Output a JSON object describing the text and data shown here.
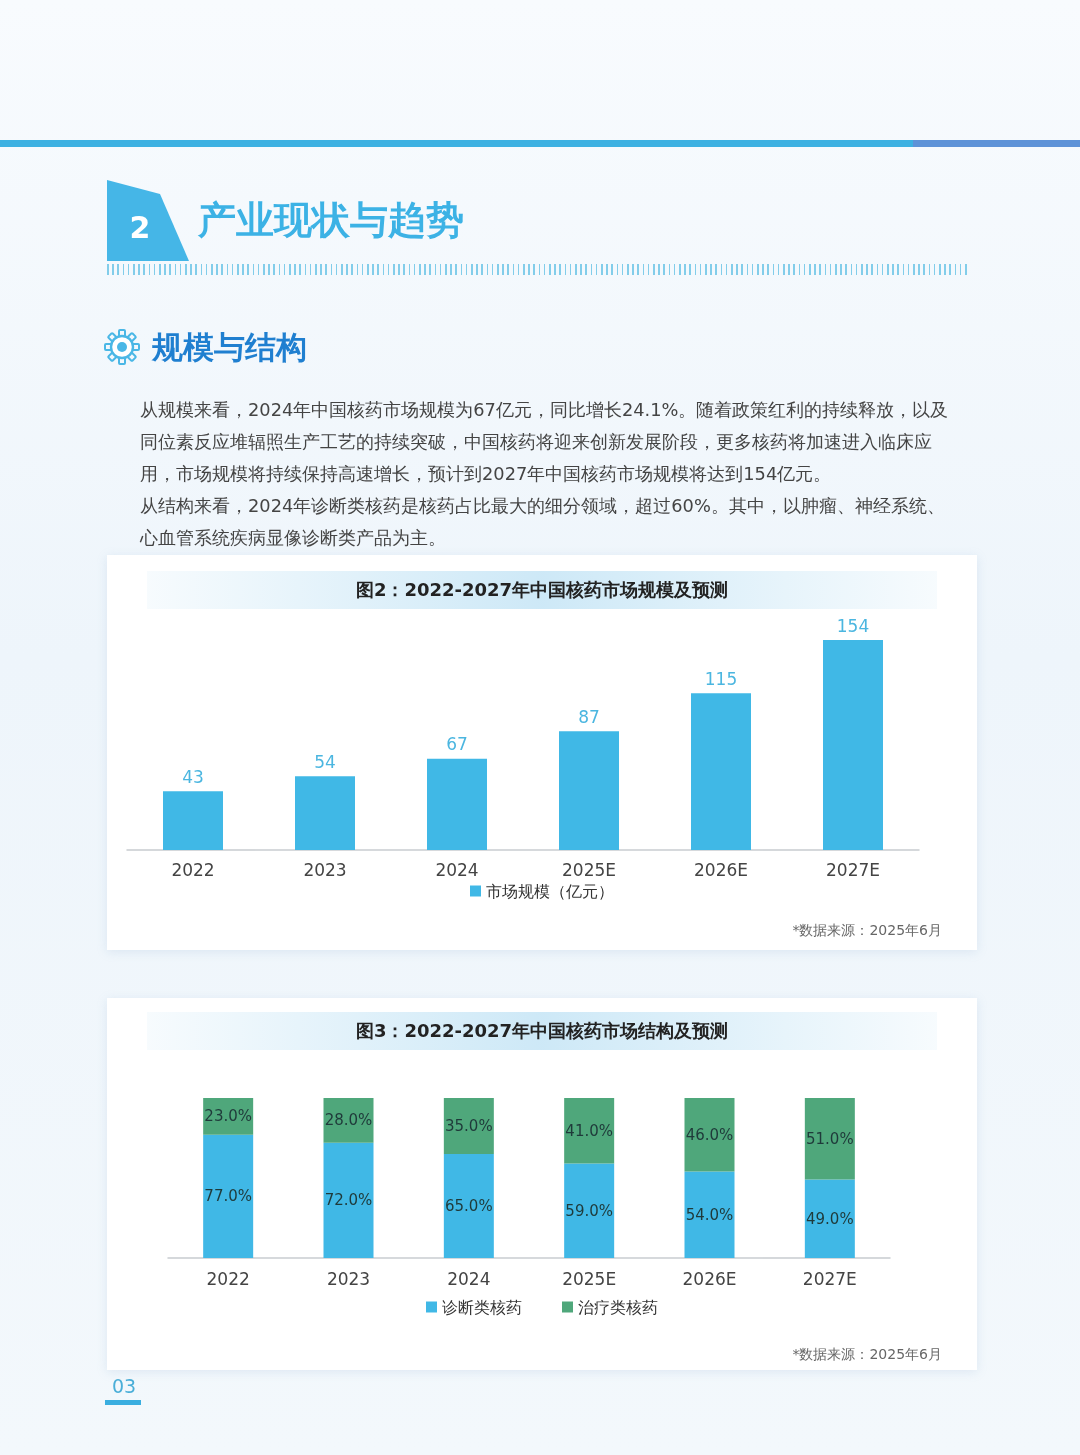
{
  "chart_data": [
    {
      "type": "other",
      "title": "产业现状与趋势",
      "subtitle": "规模与结构",
      "annotations": [
        "2",
        "从规模来看，2024年中国核药市场规模为67亿元，同比增长24.1%。随着政策红利的持续释放，以及同位素反应堆辐照生产工艺的持续突破，中国核药将迎来创新发展阶段，更多核药将加速进入临床应用，市场规模将持续保持高速增长，预计到2027年中国核药市场规模将达到154亿元。",
        "从结构来看，2024年诊断类核药是核药占比最大的细分领域，超过60%。其中，以肿瘤、神经系统、心血管系统疾病显像诊断类产品为主。",
        "03"
      ]
    },
    {
      "type": "bar",
      "title": "图2：2022-2027年中国核药市场规模及预测",
      "categories": [
        "2022",
        "2023",
        "2024",
        "2025E",
        "2026E",
        "2027E"
      ],
      "series": [
        {
          "name": "市场规模（亿元）",
          "color": "#40b8e6",
          "values": [
            43,
            54,
            67,
            87,
            115,
            154
          ]
        }
      ],
      "data_labels": true,
      "legend": "bottom",
      "tick_labels": "x",
      "annotations": [
        "*数据来源：2025年6月"
      ]
    },
    {
      "type": "bar",
      "title": "图3：2022-2027年中国核药市场结构及预测",
      "categories": [
        "2022",
        "2023",
        "2024",
        "2025E",
        "2026E",
        "2027E"
      ],
      "stacked": true,
      "series": [
        {
          "name": "诊断类核药",
          "color": "#40b8e6",
          "values": [
            77,
            72,
            65,
            59,
            54,
            49
          ],
          "value_labels": [
            "77.0%",
            "72.0%",
            "65.0%",
            "59.0%",
            "54.0%",
            "49.0%"
          ]
        },
        {
          "name": "治疗类核药",
          "color": "#4fa77b",
          "values": [
            23,
            28,
            35,
            41,
            46,
            51
          ],
          "value_labels": [
            "23.0%",
            "28.0%",
            "35.0%",
            "41.0%",
            "46.0%",
            "51.0%"
          ]
        }
      ],
      "legend": "bottom",
      "tick_labels": "x",
      "annotations": [
        "*数据来源：2025年6月"
      ]
    }
  ]
}
